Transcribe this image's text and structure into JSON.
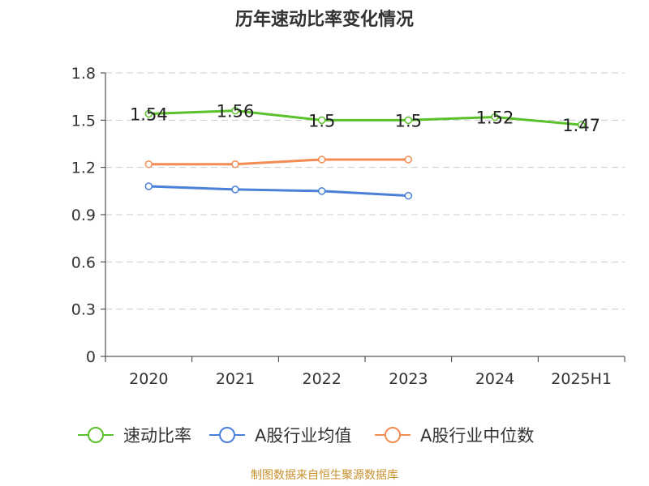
{
  "title": "历年速动比率变化情况",
  "footer": "制图数据来自恒生聚源数据库",
  "colors": {
    "series": [
      "#5ac12b",
      "#4a80d8",
      "#f28c52"
    ],
    "axis": "#333333",
    "grid": "#cccccc"
  },
  "chart_data": {
    "type": "line",
    "title": "历年速动比率变化情况",
    "categories": [
      "2020",
      "2021",
      "2022",
      "2023",
      "2024",
      "2025H1"
    ],
    "y_ticks": [
      "0",
      "0.3",
      "0.6",
      "0.9",
      "1.2",
      "1.5",
      "1.8"
    ],
    "ylim": [
      0,
      1.8
    ],
    "grid": true,
    "legend_position": "bottom",
    "series": [
      {
        "name": "速动比率",
        "values": [
          1.54,
          1.56,
          1.5,
          1.5,
          1.52,
          1.47
        ],
        "labels": [
          "1.54",
          "1.56",
          "1.5",
          "1.5",
          "1.52",
          "1.47"
        ]
      },
      {
        "name": "A股行业均值",
        "values": [
          1.08,
          1.06,
          1.05,
          1.02,
          null,
          null
        ]
      },
      {
        "name": "A股行业中位数",
        "values": [
          1.22,
          1.22,
          1.25,
          1.25,
          null,
          null
        ]
      }
    ]
  }
}
